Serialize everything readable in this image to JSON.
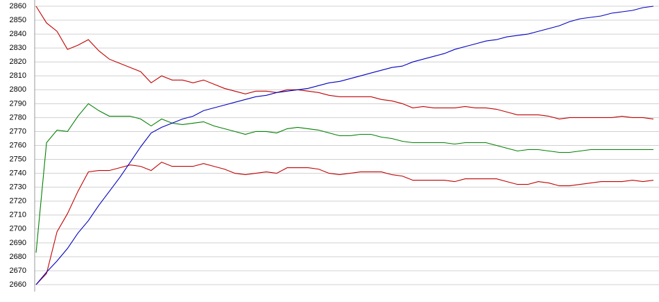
{
  "chart_data": {
    "type": "line",
    "ylim": [
      2660,
      2860
    ],
    "yticks": [
      2660,
      2670,
      2680,
      2690,
      2700,
      2710,
      2720,
      2730,
      2740,
      2750,
      2760,
      2770,
      2780,
      2790,
      2800,
      2810,
      2820,
      2830,
      2840,
      2850,
      2860
    ],
    "grid": true,
    "series": [
      {
        "color": "#c00000",
        "values": [
          2860,
          2848,
          2842,
          2829,
          2832,
          2836,
          2828,
          2822,
          2819,
          2816,
          2813,
          2805,
          2810,
          2807,
          2807,
          2805,
          2807,
          2804,
          2801,
          2799,
          2797,
          2799,
          2799,
          2798,
          2800,
          2800,
          2799,
          2798,
          2796,
          2795,
          2795,
          2795,
          2795,
          2793,
          2792,
          2790,
          2787,
          2788,
          2787,
          2787,
          2787,
          2788,
          2787,
          2787,
          2786,
          2784,
          2782,
          2782,
          2782,
          2781,
          2779,
          2780,
          2780,
          2780,
          2780,
          2780,
          2781,
          2780,
          2780,
          2779
        ]
      },
      {
        "color": "#008000",
        "values": [
          2683,
          2762,
          2771,
          2770,
          2781,
          2790,
          2785,
          2781,
          2781,
          2781,
          2779,
          2774,
          2779,
          2776,
          2775,
          2776,
          2777,
          2774,
          2772,
          2770,
          2768,
          2770,
          2770,
          2769,
          2772,
          2773,
          2772,
          2771,
          2769,
          2767,
          2767,
          2768,
          2768,
          2766,
          2765,
          2763,
          2762,
          2762,
          2762,
          2762,
          2761,
          2762,
          2762,
          2762,
          2760,
          2758,
          2756,
          2757,
          2757,
          2756,
          2755,
          2755,
          2756,
          2757,
          2757,
          2757,
          2757,
          2757,
          2757,
          2757
        ]
      },
      {
        "color": "#c00000",
        "values": [
          2660,
          2668,
          2698,
          2711,
          2727,
          2741,
          2742,
          2742,
          2744,
          2746,
          2745,
          2742,
          2748,
          2745,
          2745,
          2745,
          2747,
          2745,
          2743,
          2740,
          2739,
          2740,
          2741,
          2740,
          2744,
          2744,
          2744,
          2743,
          2740,
          2739,
          2740,
          2741,
          2741,
          2741,
          2739,
          2738,
          2735,
          2735,
          2735,
          2735,
          2734,
          2736,
          2736,
          2736,
          2736,
          2734,
          2732,
          2732,
          2734,
          2733,
          2731,
          2731,
          2732,
          2733,
          2734,
          2734,
          2734,
          2735,
          2734,
          2735
        ]
      },
      {
        "color": "#0000c0",
        "values": [
          2660,
          2669,
          2677,
          2686,
          2697,
          2706,
          2717,
          2727,
          2737,
          2748,
          2759,
          2769,
          2773,
          2776,
          2779,
          2781,
          2785,
          2787,
          2789,
          2791,
          2793,
          2795,
          2796,
          2798,
          2799,
          2800,
          2801,
          2803,
          2805,
          2806,
          2808,
          2810,
          2812,
          2814,
          2816,
          2817,
          2820,
          2822,
          2824,
          2826,
          2829,
          2831,
          2833,
          2835,
          2836,
          2838,
          2839,
          2840,
          2842,
          2844,
          2846,
          2849,
          2851,
          2852,
          2853,
          2855,
          2856,
          2857,
          2859,
          2860
        ]
      }
    ]
  }
}
